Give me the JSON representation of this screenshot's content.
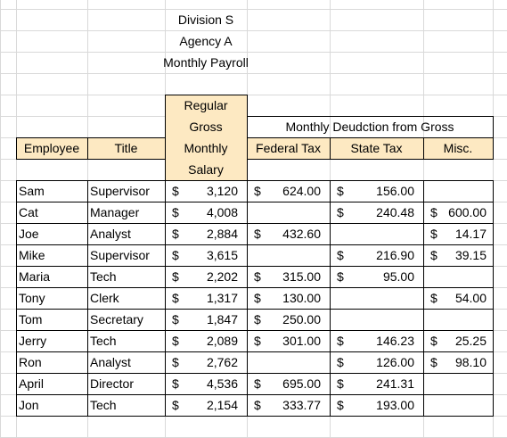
{
  "header": {
    "lines": [
      "Division S",
      "Agency A",
      "Monthly Payroll"
    ]
  },
  "table": {
    "salary_header": [
      "Regular",
      "Gross",
      "Monthly",
      "Salary"
    ],
    "deduction_header": "Monthly Deudction from Gross",
    "columns": [
      "Employee",
      "Title",
      "Federal Tax",
      "State Tax",
      "Misc."
    ],
    "currency": "$",
    "rows": [
      [
        "Sam",
        "Supervisor",
        "3,120",
        "624.00",
        "156.00",
        null
      ],
      [
        "Cat",
        "Manager",
        "4,008",
        null,
        "240.48",
        "600.00"
      ],
      [
        "Joe",
        "Analyst",
        "2,884",
        "432.60",
        null,
        "14.17"
      ],
      [
        "Mike",
        "Supervisor",
        "3,615",
        null,
        "216.90",
        "39.15"
      ],
      [
        "Maria",
        "Tech",
        "2,202",
        "315.00",
        "95.00",
        null
      ],
      [
        "Tony",
        "Clerk",
        "1,317",
        "130.00",
        null,
        "54.00"
      ],
      [
        "Tom",
        "Secretary",
        "1,847",
        "250.00",
        null,
        null
      ],
      [
        "Jerry",
        "Tech",
        "2,089",
        "301.00",
        "146.23",
        "25.25"
      ],
      [
        "Ron",
        "Analyst",
        "2,762",
        null,
        "126.00",
        "98.10"
      ],
      [
        "April",
        "Director",
        "4,536",
        "695.00",
        "241.31",
        null
      ],
      [
        "Jon",
        "Tech",
        "2,154",
        "333.77",
        "193.00",
        null
      ]
    ]
  }
}
